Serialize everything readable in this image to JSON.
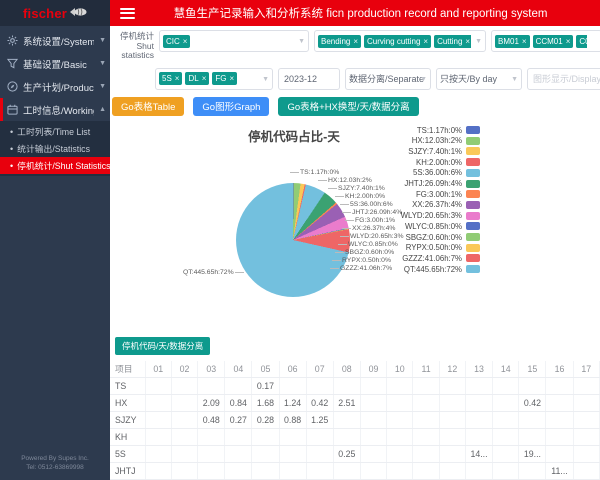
{
  "header": {
    "logo_text": "fischer",
    "title": "慧鱼生产记录输入和分析系统 ficn production record and reporting system"
  },
  "sidebar": {
    "items": [
      {
        "label": "系统设置/System"
      },
      {
        "label": "基础设置/Basic"
      },
      {
        "label": "生产计划/Product Plan"
      },
      {
        "label": "工时信息/Working Time"
      }
    ],
    "submenu": [
      {
        "label": "工时列表/Time List"
      },
      {
        "label": "统计输出/Statistics"
      },
      {
        "label": "停机统计/Shut Statistics"
      }
    ],
    "footer_line1": "Powered By Supes Inc.",
    "footer_line2": "Tel: 0512-63869998"
  },
  "filters": {
    "label_line1": "停机统计",
    "label_line2": "Shut statistics",
    "shut_type_tags": [
      "CIC"
    ],
    "process_tags": [
      "Bending",
      "Curving cutting",
      "Cutting",
      "FG"
    ],
    "machine_tags": [
      "BM01",
      "CCM01",
      "C01",
      "C02"
    ],
    "code_tags": [
      "5S",
      "DL",
      "FG"
    ],
    "month_value": "2023-12",
    "separate_value": "数据分离/Separate",
    "byday_value": "只按天/By day",
    "display_placeholder": "图形显示/Display graph"
  },
  "buttons": {
    "go_table": "Go表格Table",
    "go_graph": "Go图形Graph",
    "go_combo": "Go表格+HX换型/天/数据分离",
    "table_section": "停机代码/天/数据分离"
  },
  "chart_data": {
    "type": "pie",
    "title": "停机代码占比-天",
    "unit": "hours",
    "legend_position": "right",
    "slices": [
      {
        "name": "TS",
        "hours": 1.17,
        "pct": 0,
        "label": "TS:1.17h:0%",
        "color": "#5470c6"
      },
      {
        "name": "HX",
        "hours": 12.03,
        "pct": 2,
        "label": "HX:12.03h:2%",
        "color": "#91cc75"
      },
      {
        "name": "SJZY",
        "hours": 7.4,
        "pct": 1,
        "label": "SJZY:7.40h:1%",
        "color": "#fac858"
      },
      {
        "name": "KH",
        "hours": 2.0,
        "pct": 0,
        "label": "KH:2.00h:0%",
        "color": "#ee6666"
      },
      {
        "name": "5S",
        "hours": 36.0,
        "pct": 6,
        "label": "5S:36.00h:6%",
        "color": "#73c0de"
      },
      {
        "name": "JHTJ",
        "hours": 26.09,
        "pct": 4,
        "label": "JHTJ:26.09h:4%",
        "color": "#3ba272"
      },
      {
        "name": "FG",
        "hours": 3.0,
        "pct": 1,
        "label": "FG:3.00h:1%",
        "color": "#fc8452"
      },
      {
        "name": "XX",
        "hours": 26.37,
        "pct": 4,
        "label": "XX:26.37h:4%",
        "color": "#9a60b4"
      },
      {
        "name": "WLYD",
        "hours": 20.65,
        "pct": 3,
        "label": "WLYD:20.65h:3%",
        "color": "#ea7ccc"
      },
      {
        "name": "WLYC",
        "hours": 0.85,
        "pct": 0,
        "label": "WLYC:0.85h:0%",
        "color": "#5470c6"
      },
      {
        "name": "SBGZ",
        "hours": 0.6,
        "pct": 0,
        "label": "SBGZ:0.60h:0%",
        "color": "#91cc75"
      },
      {
        "name": "RYPX",
        "hours": 0.5,
        "pct": 0,
        "label": "RYPX:0.50h:0%",
        "color": "#fac858"
      },
      {
        "name": "GZZZ",
        "hours": 41.06,
        "pct": 7,
        "label": "GZZZ:41.06h:7%",
        "color": "#ee6666"
      },
      {
        "name": "QT",
        "hours": 445.65,
        "pct": 72,
        "label": "QT:445.65h:72%",
        "color": "#73c0de"
      }
    ]
  },
  "table": {
    "name_header": "项目",
    "columns": [
      "01",
      "02",
      "03",
      "04",
      "05",
      "06",
      "07",
      "08",
      "09",
      "10",
      "11",
      "12",
      "13",
      "14",
      "15",
      "16",
      "17"
    ],
    "rows": [
      {
        "name": "TS",
        "values": {
          "05": "0.17"
        }
      },
      {
        "name": "HX",
        "values": {
          "03": "2.09",
          "04": "0.84",
          "05": "1.68",
          "06": "1.24",
          "07": "0.42",
          "08": "2.51",
          "15": "0.42"
        }
      },
      {
        "name": "SJZY",
        "values": {
          "03": "0.48",
          "04": "0.27",
          "05": "0.28",
          "06": "0.88",
          "07": "1.25"
        }
      },
      {
        "name": "KH",
        "values": {}
      },
      {
        "name": "5S",
        "values": {
          "08": "0.25",
          "13": "14...",
          "15": "19..."
        }
      },
      {
        "name": "JHTJ",
        "values": {
          "16": "11..."
        }
      },
      {
        "name": "DL",
        "values": {}
      }
    ]
  }
}
